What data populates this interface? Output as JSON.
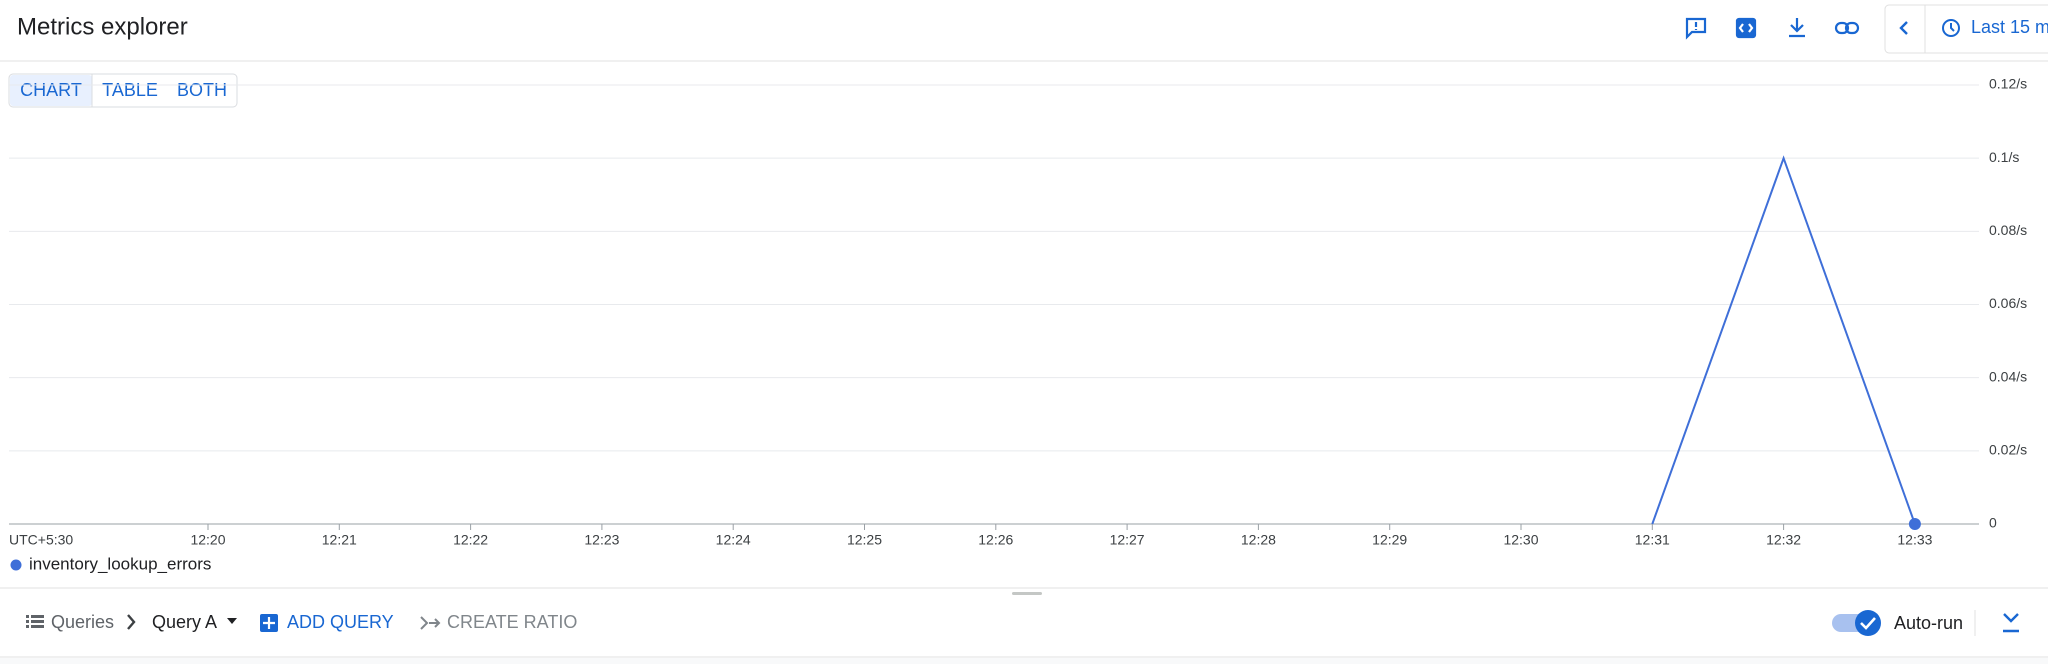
{
  "header": {
    "title": "Metrics explorer",
    "time_range": "Last 15 m"
  },
  "view_toggle": {
    "options": [
      "CHART",
      "TABLE",
      "BOTH"
    ],
    "selected": "CHART"
  },
  "chart_data": {
    "type": "line",
    "x_label": "UTC+5:30",
    "categories": [
      "12:20",
      "12:21",
      "12:22",
      "12:23",
      "12:24",
      "12:25",
      "12:26",
      "12:27",
      "12:28",
      "12:29",
      "12:30",
      "12:31",
      "12:32",
      "12:33"
    ],
    "series": [
      {
        "name": "inventory_lookup_errors",
        "color": "#3f6fd8",
        "values": [
          null,
          null,
          null,
          null,
          null,
          null,
          null,
          null,
          null,
          null,
          null,
          0,
          0.1,
          0
        ]
      }
    ],
    "ylim": [
      0,
      0.12
    ],
    "yticks": [
      0,
      {
        "value": 0.02,
        "label": "0.02/s"
      },
      {
        "value": 0.04,
        "label": "0.04/s"
      },
      {
        "value": 0.06,
        "label": "0.06/s"
      },
      {
        "value": 0.08,
        "label": "0.08/s"
      },
      {
        "value": 0.1,
        "label": "0.1/s"
      },
      {
        "value": 0.12,
        "label": "0.12/s"
      }
    ],
    "grid": true
  },
  "query_bar": {
    "queries": "Queries",
    "query": "Query A",
    "add_query": "ADD QUERY",
    "create_ratio": "CREATE RATIO",
    "auto_run": "Auto-run"
  }
}
